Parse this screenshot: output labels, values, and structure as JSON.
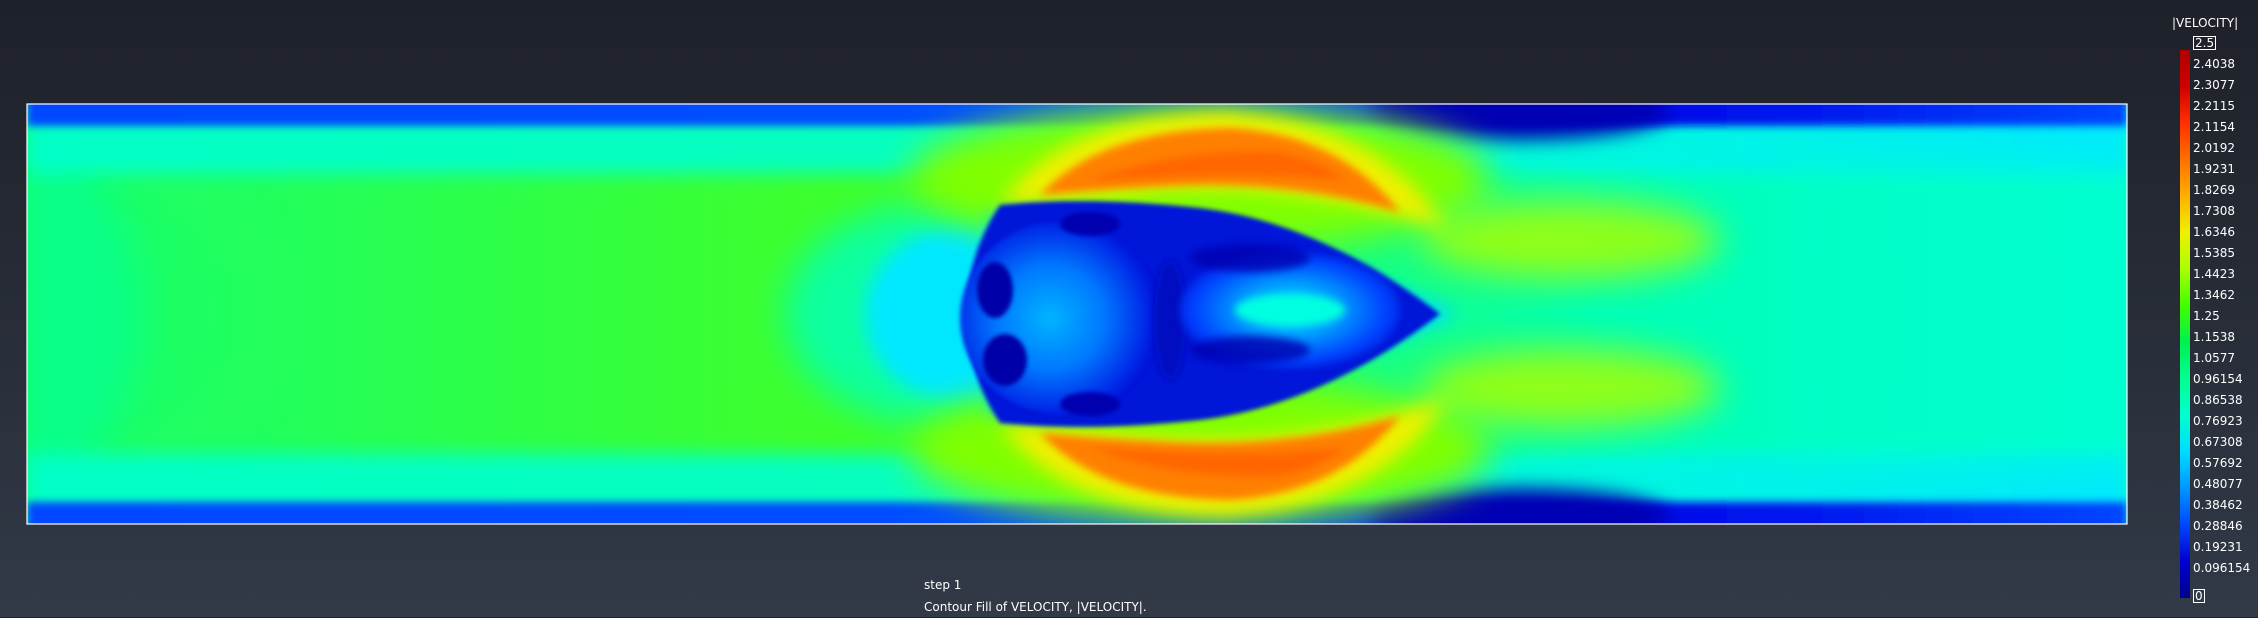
{
  "viewer": {
    "colors": {
      "background_top": "#1e2129",
      "background_bottom": "#323a48",
      "domain_border": "#ffffff",
      "text": "#ffffff"
    }
  },
  "legend": {
    "title": "|VELOCITY|",
    "max_label": "2.5",
    "min_label": "0",
    "labels": [
      "2.4038",
      "2.3077",
      "2.2115",
      "2.1154",
      "2.0192",
      "1.9231",
      "1.8269",
      "1.7308",
      "1.6346",
      "1.5385",
      "1.4423",
      "1.3462",
      "1.25",
      "1.1538",
      "1.0577",
      "0.96154",
      "0.86538",
      "0.76923",
      "0.67308",
      "0.57692",
      "0.48077",
      "0.38462",
      "0.28846",
      "0.19231",
      "0.096154"
    ],
    "colormap": [
      "#00008c",
      "#0000d0",
      "#0046ff",
      "#0096ff",
      "#00dcff",
      "#00ffd0",
      "#00ff90",
      "#00f050",
      "#40ff00",
      "#a8ff00",
      "#f0f000",
      "#ffb000",
      "#ff7000",
      "#ff3000",
      "#d00000",
      "#b00000"
    ]
  },
  "caption": {
    "line1": "step 1",
    "line2": "Contour Fill of VELOCITY, |VELOCITY|."
  },
  "chart_data": {
    "type": "heatmap",
    "title": "Contour Fill of VELOCITY, |VELOCITY|.",
    "step": "step 1",
    "variable": "|VELOCITY|",
    "range": [
      0,
      2.5
    ],
    "field_structure": {
      "domain": "rectangular channel",
      "inflow": "left edge, parabolic profile, core |V| ≈ 1.15",
      "walls": "top and bottom, |V| ≈ 0",
      "obstacle": "bluff body in channel center, interior |V| ≈ 0–0.3",
      "shear_layers": "above and below the obstacle, peak |V| ≈ 1.9–2.0",
      "wake": "recirculation bubble downstream of the obstacle, |V| ≈ 0.1–0.8",
      "outflow": "right edge, |V| ≈ 0.85–1.0"
    }
  }
}
